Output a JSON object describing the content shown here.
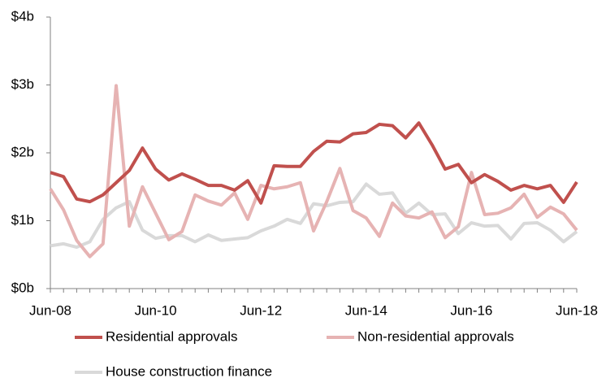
{
  "chart_data": {
    "type": "line",
    "categories": [
      "Jun-08",
      null,
      null,
      null,
      null,
      null,
      null,
      null,
      "Jun-10",
      null,
      null,
      null,
      null,
      null,
      null,
      null,
      "Jun-12",
      null,
      null,
      null,
      null,
      null,
      null,
      null,
      "Jun-14",
      null,
      null,
      null,
      null,
      null,
      null,
      null,
      "Jun-16",
      null,
      null,
      null,
      null,
      null,
      null,
      null,
      "Jun-18"
    ],
    "series": [
      {
        "name": "Residential approvals",
        "color": "#c0504d",
        "values": [
          1.71,
          1.65,
          1.32,
          1.28,
          1.38,
          1.56,
          1.74,
          2.07,
          1.76,
          1.6,
          1.69,
          1.61,
          1.52,
          1.52,
          1.45,
          1.59,
          1.26,
          1.81,
          1.8,
          1.8,
          2.02,
          2.17,
          2.16,
          2.28,
          2.3,
          2.42,
          2.4,
          2.22,
          2.44,
          2.12,
          1.76,
          1.83,
          1.56,
          1.68,
          1.58,
          1.45,
          1.52,
          1.47,
          1.52,
          1.27,
          1.57
        ]
      },
      {
        "name": "Non-residential approvals",
        "color": "#e6b3b3",
        "values": [
          1.47,
          1.16,
          0.71,
          0.47,
          0.66,
          2.99,
          0.92,
          1.5,
          1.11,
          0.72,
          0.84,
          1.38,
          1.29,
          1.23,
          1.41,
          1.02,
          1.52,
          1.47,
          1.5,
          1.56,
          0.85,
          1.28,
          1.77,
          1.15,
          1.04,
          0.77,
          1.26,
          1.07,
          1.04,
          1.13,
          0.75,
          0.91,
          1.71,
          1.09,
          1.11,
          1.19,
          1.39,
          1.05,
          1.2,
          1.1,
          0.86
        ]
      },
      {
        "name": "House construction finance",
        "color": "#d9d9d9",
        "values": [
          0.63,
          0.66,
          0.61,
          0.69,
          1.02,
          1.19,
          1.28,
          0.86,
          0.74,
          0.78,
          0.78,
          0.69,
          0.79,
          0.71,
          0.73,
          0.75,
          0.85,
          0.92,
          1.02,
          0.96,
          1.25,
          1.22,
          1.27,
          1.28,
          1.54,
          1.39,
          1.41,
          1.11,
          1.26,
          1.09,
          1.1,
          0.81,
          0.97,
          0.92,
          0.93,
          0.73,
          0.96,
          0.97,
          0.86,
          0.69,
          0.84
        ]
      }
    ],
    "ylim": [
      0,
      4
    ],
    "yticks": [
      {
        "value": 0,
        "label": "$0b"
      },
      {
        "value": 1,
        "label": "$1b"
      },
      {
        "value": 2,
        "label": "$2b"
      },
      {
        "value": 3,
        "label": "$3b"
      },
      {
        "value": 4,
        "label": "$4b"
      }
    ],
    "grid": false,
    "legend": "bottom"
  }
}
